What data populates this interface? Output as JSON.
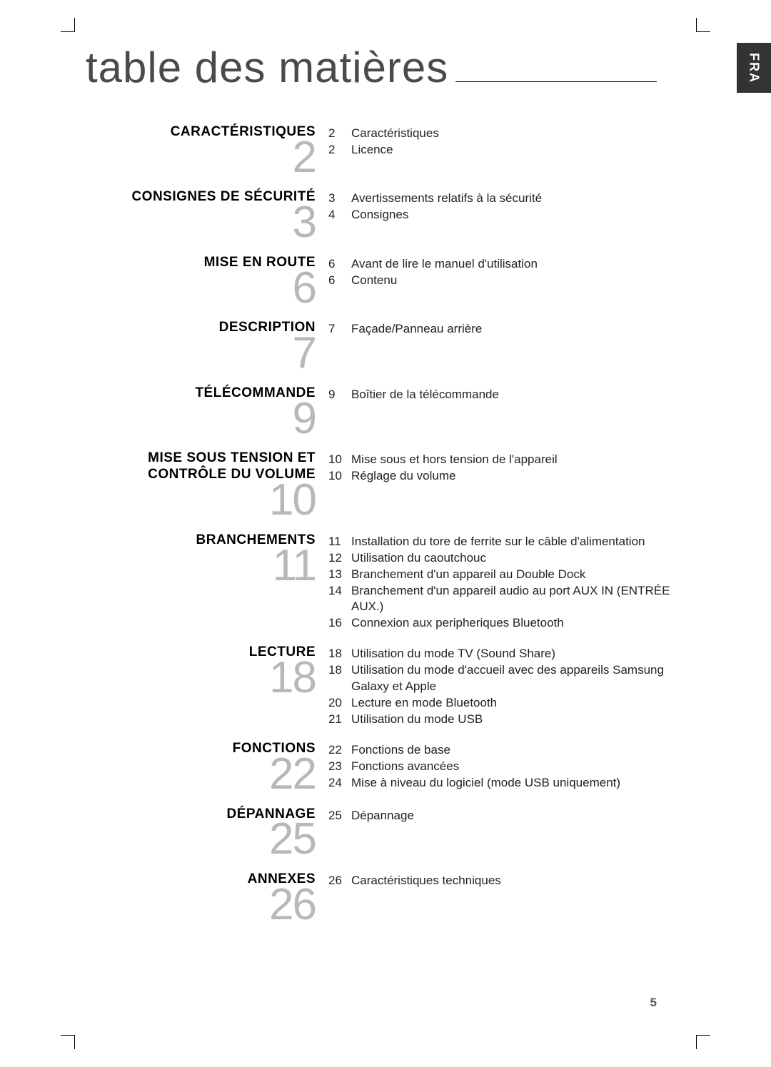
{
  "title": "table des matières",
  "lang_tab": "FRA",
  "page_number": "5",
  "colors": {
    "title": "#4a4a4a",
    "big_num": "#b8b8b8",
    "text": "#000000",
    "tab_bg": "#333333",
    "tab_fg": "#ffffff"
  },
  "sections": [
    {
      "title": "CARACTÉRISTIQUES",
      "num": "2",
      "entries": [
        {
          "pg": "2",
          "txt": "Caractéristiques"
        },
        {
          "pg": "2",
          "txt": "Licence"
        }
      ]
    },
    {
      "title": "CONSIGNES DE SÉCURITÉ",
      "num": "3",
      "entries": [
        {
          "pg": "3",
          "txt": "Avertissements relatifs à la sécurité"
        },
        {
          "pg": "4",
          "txt": "Consignes"
        }
      ]
    },
    {
      "title": "MISE EN ROUTE",
      "num": "6",
      "entries": [
        {
          "pg": "6",
          "txt": "Avant de lire le manuel d'utilisation"
        },
        {
          "pg": "6",
          "txt": "Contenu"
        }
      ]
    },
    {
      "title": "DESCRIPTION",
      "num": "7",
      "entries": [
        {
          "pg": "7",
          "txt": "Façade/Panneau arrière"
        }
      ]
    },
    {
      "title": "TÉLÉCOMMANDE",
      "num": "9",
      "entries": [
        {
          "pg": "9",
          "txt": "Boîtier de la télécommande"
        }
      ]
    },
    {
      "title": "MISE SOUS TENSION ET CONTRÔLE DU VOLUME",
      "num": "10",
      "entries": [
        {
          "pg": "10",
          "txt": "Mise sous et hors tension de l'appareil"
        },
        {
          "pg": "10",
          "txt": "Réglage du volume"
        }
      ]
    },
    {
      "title": "BRANCHEMENTS",
      "num": "11",
      "entries": [
        {
          "pg": "11",
          "txt": "Installation du tore de ferrite sur le câble d'alimentation"
        },
        {
          "pg": "12",
          "txt": "Utilisation du caoutchouc"
        },
        {
          "pg": "13",
          "txt": "Branchement d'un appareil au Double Dock"
        },
        {
          "pg": "14",
          "txt": "Branchement d'un appareil audio au port AUX IN (ENTRÉE AUX.)"
        },
        {
          "pg": "16",
          "txt": "Connexion aux peripheriques Bluetooth"
        }
      ]
    },
    {
      "title": "LECTURE",
      "num": "18",
      "entries": [
        {
          "pg": "18",
          "txt": "Utilisation du mode TV (Sound Share)"
        },
        {
          "pg": "18",
          "txt": "Utilisation du mode d'accueil avec des appareils Samsung Galaxy et Apple"
        },
        {
          "pg": "20",
          "txt": "Lecture en mode Bluetooth"
        },
        {
          "pg": "21",
          "txt": "Utilisation du mode USB"
        }
      ]
    },
    {
      "title": "FONCTIONS",
      "num": "22",
      "entries": [
        {
          "pg": "22",
          "txt": "Fonctions de base"
        },
        {
          "pg": "23",
          "txt": "Fonctions avancées"
        },
        {
          "pg": "24",
          "txt": "Mise à niveau du logiciel (mode USB uniquement)"
        }
      ]
    },
    {
      "title": "DÉPANNAGE",
      "num": "25",
      "entries": [
        {
          "pg": "25",
          "txt": "Dépannage"
        }
      ]
    },
    {
      "title": "ANNEXES",
      "num": "26",
      "entries": [
        {
          "pg": "26",
          "txt": "Caractéristiques techniques"
        }
      ]
    }
  ]
}
